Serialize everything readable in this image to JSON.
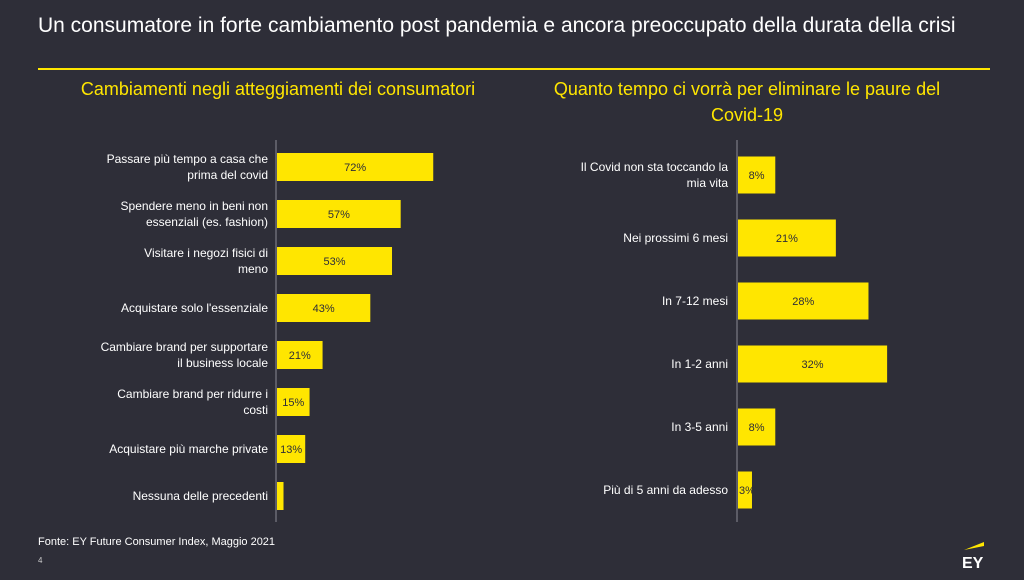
{
  "title": "Un consumatore in forte cambiamento post pandemia e ancora preoccupato della durata della crisi",
  "colors": {
    "background": "#2e2e38",
    "bar": "#ffe600",
    "accent": "#ffe600"
  },
  "chart_data": [
    {
      "type": "bar",
      "orientation": "horizontal",
      "title": "Cambiamenti negli atteggiamenti dei consumatori",
      "categories": [
        "Passare più tempo a casa che prima del covid",
        "Spendere meno in beni non essenziali (es. fashion)",
        "Visitare i negozi fisici di meno",
        "Acquistare solo l'essenziale",
        "Cambiare brand per supportare il business locale",
        "Cambiare brand per ridurre i costi",
        "Acquistare più marche private",
        "Nessuna delle precedenti"
      ],
      "values": [
        72,
        57,
        53,
        43,
        21,
        15,
        13,
        3
      ],
      "labels": [
        "72%",
        "57%",
        "53%",
        "43%",
        "21%",
        "15%",
        "13%",
        ""
      ]
    },
    {
      "type": "bar",
      "orientation": "horizontal",
      "title": "Quanto tempo ci vorrà per eliminare le paure del Covid-19",
      "categories": [
        "Il Covid non sta toccando la mia vita",
        "Nei prossimi 6 mesi",
        "In 7-12 mesi",
        "In 1-2 anni",
        "In 3-5 anni",
        "Più di 5 anni da adesso"
      ],
      "values": [
        8,
        21,
        28,
        32,
        8,
        3
      ],
      "labels": [
        "8%",
        "21%",
        "28%",
        "32%",
        "8%",
        "3%"
      ]
    }
  ],
  "footer": {
    "source": "Fonte: EY Future Consumer Index, Maggio 2021",
    "page": "4",
    "logo": "EY"
  }
}
